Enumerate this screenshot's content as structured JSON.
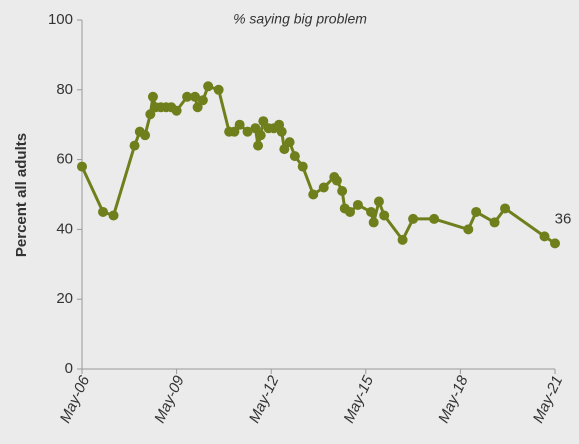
{
  "chart_data": {
    "type": "line",
    "title": "% saying big problem",
    "y_label": "Percent all adults",
    "x": [
      "2006-05",
      "2007-01",
      "2007-05",
      "2008-01",
      "2008-03",
      "2008-05",
      "2008-07",
      "2008-08",
      "2008-09",
      "2008-11",
      "2009-01",
      "2009-03",
      "2009-05",
      "2009-09",
      "2009-12",
      "2010-01",
      "2010-03",
      "2010-05",
      "2010-09",
      "2011-01",
      "2011-03",
      "2011-05",
      "2011-08",
      "2011-11",
      "2011-12",
      "2012-01",
      "2012-02",
      "2012-04",
      "2012-06",
      "2012-08",
      "2012-09",
      "2012-10",
      "2012-12",
      "2013-02",
      "2013-05",
      "2013-09",
      "2014-01",
      "2014-05",
      "2014-06",
      "2014-08",
      "2014-09",
      "2014-11",
      "2015-02",
      "2015-07",
      "2015-08",
      "2015-10",
      "2015-12",
      "2016-07",
      "2016-11",
      "2017-07",
      "2018-08",
      "2018-11",
      "2019-06",
      "2019-10",
      "2021-01",
      "2021-05"
    ],
    "series": [
      {
        "name": "Percent all adults",
        "color": "#6e7f1c",
        "values": [
          58,
          45,
          44,
          64,
          68,
          67,
          73,
          78,
          75,
          75,
          75,
          75,
          74,
          78,
          78,
          75,
          77,
          81,
          80,
          68,
          68,
          70,
          68,
          69,
          64,
          67,
          71,
          69,
          69,
          70,
          68,
          63,
          65,
          61,
          58,
          50,
          52,
          55,
          54,
          51,
          46,
          45,
          47,
          45,
          42,
          48,
          44,
          37,
          43,
          43,
          40,
          45,
          42,
          46,
          38,
          36
        ]
      }
    ],
    "ylim": [
      0,
      100
    ],
    "yticks": [
      0,
      20,
      40,
      60,
      80,
      100
    ],
    "xlim": [
      "2006-05",
      "2021-05"
    ],
    "xticks": [
      {
        "value": "2006-05",
        "label": "May-06"
      },
      {
        "value": "2009-05",
        "label": "May-09"
      },
      {
        "value": "2012-05",
        "label": "May-12"
      },
      {
        "value": "2015-05",
        "label": "May-15"
      },
      {
        "value": "2018-05",
        "label": "May-18"
      },
      {
        "value": "2021-05",
        "label": "May-21"
      }
    ]
  }
}
